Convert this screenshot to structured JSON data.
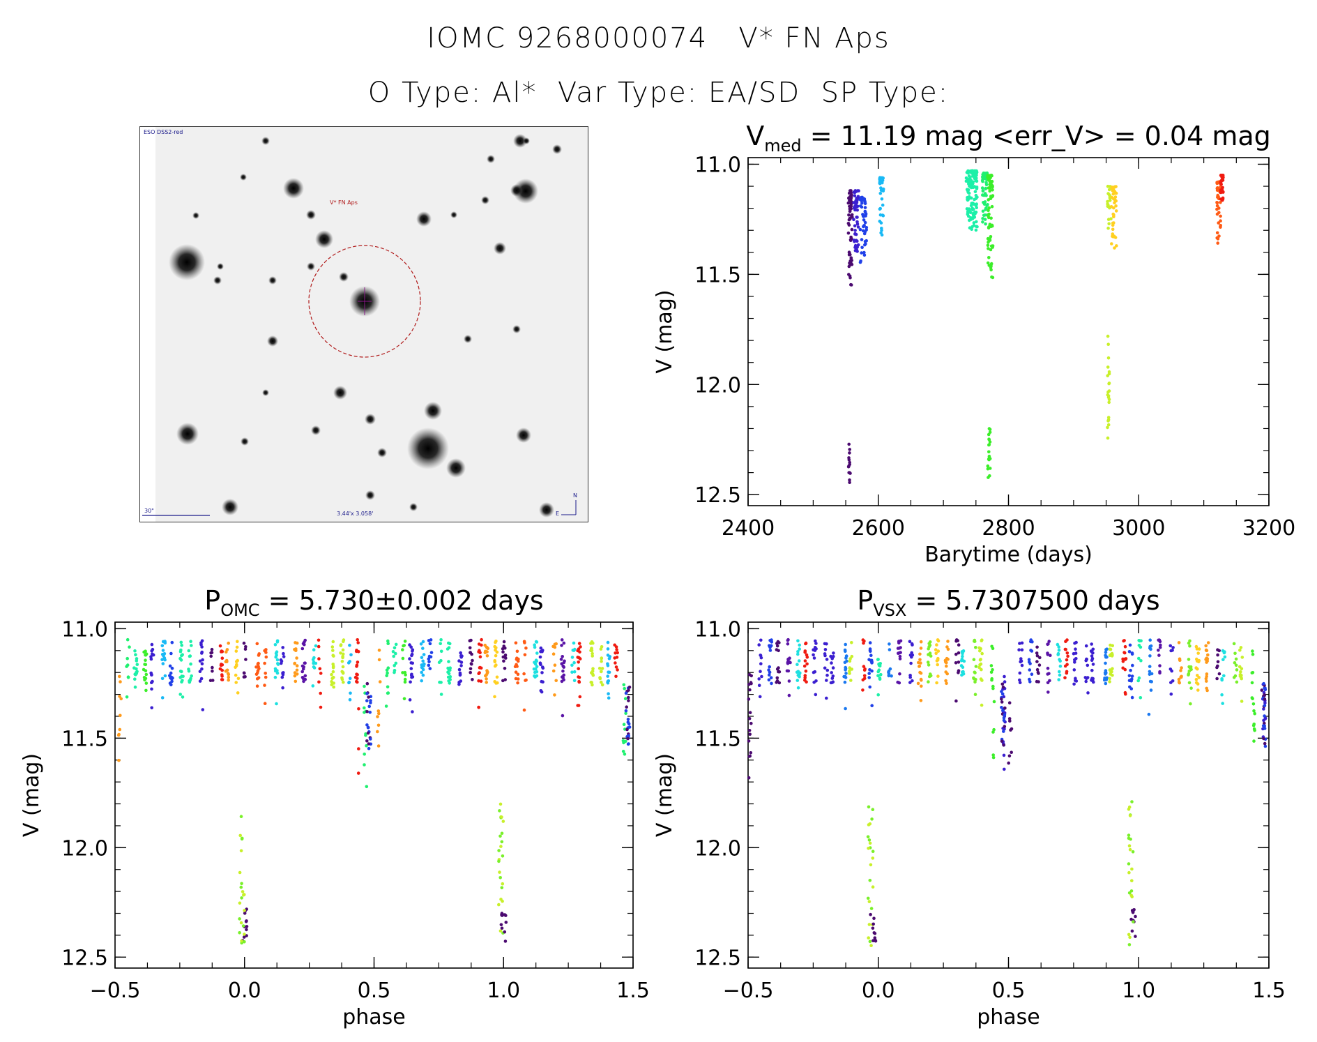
{
  "header": {
    "line1": "IOMC 9268000074   V* FN Aps",
    "line2": "O Type: Al*  Var Type: EA/SD  SP Type:"
  },
  "finder": {
    "survey_label": "ESO DSS2-red",
    "target_label": "V* FN Aps",
    "scale_label": "30\"",
    "fov_label": "3.44'x 3.058'",
    "compass_n": "N",
    "compass_e": "E"
  },
  "colors": {
    "palette": [
      "#4b0a70",
      "#5a14a6",
      "#3b1fd0",
      "#2040e8",
      "#1a78f0",
      "#19b9f5",
      "#1de0e0",
      "#1cf0a8",
      "#20f070",
      "#3cee2a",
      "#7af02a",
      "#c8f02a",
      "#ffd020",
      "#ff9a1a",
      "#ff5a14",
      "#f01a10"
    ]
  },
  "chart_data": [
    {
      "type": "scatter",
      "id": "lightcurve",
      "title_main": "V",
      "title_sub": "med",
      "title_rest": " = 11.19 mag <err_V> = 0.04 mag",
      "xlabel": "Barytime (days)",
      "ylabel": "V (mag)",
      "xlim": [
        2400,
        3200
      ],
      "ylim": [
        12.55,
        10.97
      ],
      "xticks": [
        2400,
        2600,
        2800,
        3000,
        3200
      ],
      "xtick_labels": [
        "2400",
        "2600",
        "2800",
        "3000",
        "3200"
      ],
      "yticks": [
        11.0,
        11.5,
        12.0,
        12.5
      ],
      "ytick_labels": [
        "11.0",
        "11.5",
        "12.0",
        "12.5"
      ],
      "series": [
        {
          "name": "s0",
          "color_index": 0,
          "x_range": [
            2554,
            2560
          ],
          "v_band": [
            11.12,
            11.55
          ],
          "dip": [
            12.27,
            12.46
          ],
          "dip_n": 14,
          "n": 60
        },
        {
          "name": "s1",
          "color_index": 2,
          "x_range": [
            2562,
            2570
          ],
          "v_band": [
            11.12,
            11.4
          ],
          "n": 50
        },
        {
          "name": "s2",
          "color_index": 3,
          "x_range": [
            2572,
            2582
          ],
          "v_band": [
            11.15,
            11.45
          ],
          "n": 45
        },
        {
          "name": "s3",
          "color_index": 5,
          "x_range": [
            2602,
            2608
          ],
          "v_band": [
            11.06,
            11.33
          ],
          "n": 35
        },
        {
          "name": "s4",
          "color_index": 7,
          "x_range": [
            2735,
            2752
          ],
          "v_band": [
            11.03,
            11.3
          ],
          "n": 130
        },
        {
          "name": "s5",
          "color_index": 8,
          "x_range": [
            2760,
            2768
          ],
          "v_band": [
            11.04,
            11.3
          ],
          "n": 50
        },
        {
          "name": "s6",
          "color_index": 9,
          "x_range": [
            2768,
            2776
          ],
          "v_band": [
            11.05,
            11.55
          ],
          "dip": [
            12.18,
            12.43
          ],
          "dip_n": 20,
          "n": 70
        },
        {
          "name": "s7",
          "color_index": 11,
          "x_range": [
            2952,
            2958
          ],
          "v_band": [
            11.1,
            11.3
          ],
          "dip": [
            11.78,
            12.27
          ],
          "dip_n": 22,
          "n": 20
        },
        {
          "name": "s8",
          "color_index": 12,
          "x_range": [
            2958,
            2966
          ],
          "v_band": [
            11.1,
            11.4
          ],
          "n": 40
        },
        {
          "name": "s9",
          "color_index": 14,
          "x_range": [
            3120,
            3126
          ],
          "v_band": [
            11.08,
            11.38
          ],
          "n": 40
        },
        {
          "name": "s10",
          "color_index": 15,
          "x_range": [
            3126,
            3130
          ],
          "v_band": [
            11.05,
            11.17
          ],
          "n": 35
        }
      ]
    },
    {
      "type": "scatter",
      "id": "phase_omc",
      "title_main": "P",
      "title_sub": "OMC",
      "title_rest": " = 5.730±0.002 days",
      "xlabel": "phase",
      "ylabel": "V (mag)",
      "xlim": [
        -0.5,
        1.5
      ],
      "ylim": [
        12.55,
        10.97
      ],
      "xticks": [
        -0.5,
        0.0,
        0.5,
        1.0,
        1.5
      ],
      "xtick_labels": [
        "−0.5",
        "0.0",
        "0.5",
        "1.0",
        "1.5"
      ],
      "yticks": [
        11.0,
        11.5,
        12.0,
        12.5
      ],
      "ytick_labels": [
        "11.0",
        "11.5",
        "12.0",
        "12.5"
      ],
      "primary_eclipse_phase": -0.01,
      "secondary_eclipse_phase": 0.48,
      "eclipse_depth": [
        11.79,
        12.45
      ],
      "secondary_depth": [
        11.25,
        11.55
      ]
    },
    {
      "type": "scatter",
      "id": "phase_vsx",
      "title_main": "P",
      "title_sub": "VSX",
      "title_rest": " = 5.7307500 days",
      "xlabel": "phase",
      "ylabel": "V (mag)",
      "xlim": [
        -0.5,
        1.5
      ],
      "ylim": [
        12.55,
        10.97
      ],
      "xticks": [
        -0.5,
        0.0,
        0.5,
        1.0,
        1.5
      ],
      "xtick_labels": [
        "−0.5",
        "0.0",
        "0.5",
        "1.0",
        "1.5"
      ],
      "yticks": [
        11.0,
        11.5,
        12.0,
        12.5
      ],
      "ytick_labels": [
        "11.0",
        "11.5",
        "12.0",
        "12.5"
      ],
      "primary_eclipse_phase": -0.03,
      "secondary_eclipse_phase": 0.48,
      "eclipse_depth": [
        11.79,
        12.45
      ],
      "secondary_depth": [
        11.25,
        11.55
      ]
    }
  ]
}
